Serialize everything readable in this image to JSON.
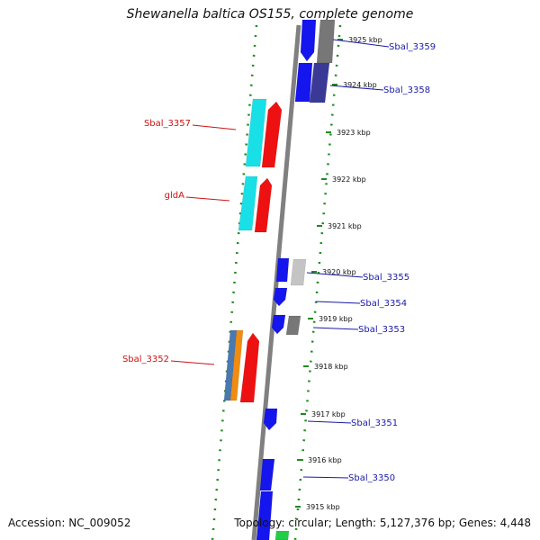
{
  "title": "Shewanella baltica OS155, complete genome",
  "accession_label": "Accession: NC_009052",
  "topology_label": "Topology: circular; Length: 5,127,376 bp; Genes: 4,448",
  "colors": {
    "backbone": "#808080",
    "tick": "#1f8a1f",
    "forward_label": "#1a1aa6",
    "reverse_label": "#cc1111",
    "blue_gene": "#1515ee",
    "red_gene": "#ee1111",
    "cyan_gene": "#18e0e6",
    "gray_gene": "#777777",
    "light_gray_gene": "#c4c4c4",
    "navy_gene": "#3a3a96",
    "orange_gene": "#f08c10",
    "steel_gene": "#4a78b0",
    "green_gene": "#22cc44"
  },
  "kbp_ticks": [
    "3925 kbp",
    "3924 kbp",
    "3923 kbp",
    "3922 kbp",
    "3921 kbp",
    "3920 kbp",
    "3919 kbp",
    "3918 kbp",
    "3917 kbp",
    "3916 kbp",
    "3915 kbp"
  ],
  "forward_genes": [
    "Sbal_3359",
    "Sbal_3358",
    "Sbal_3355",
    "Sbal_3354",
    "Sbal_3353",
    "Sbal_3351",
    "Sbal_3350"
  ],
  "reverse_genes": [
    "Sbal_3357",
    "gldA",
    "Sbal_3352"
  ]
}
